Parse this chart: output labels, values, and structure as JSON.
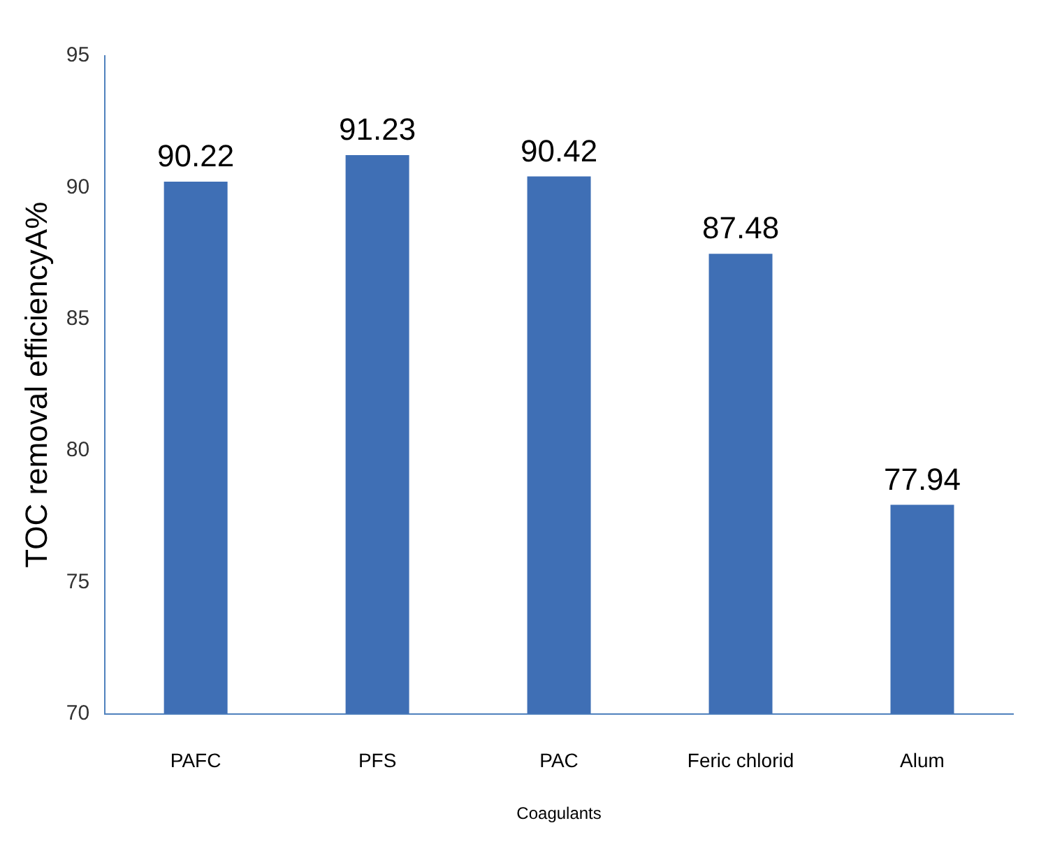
{
  "chart_data": {
    "type": "bar",
    "xlabel": "Coagulants",
    "ylabel": "TOC removal efficiencyA%",
    "categories": [
      "PAFC",
      "PFS",
      "PAC",
      "Feric chlorid",
      "Alum"
    ],
    "values": [
      90.22,
      91.23,
      90.42,
      87.48,
      77.94
    ],
    "color": "#3f6fb5",
    "ylim": [
      70,
      95
    ],
    "yticks": [
      70,
      75,
      80,
      85,
      90,
      95
    ],
    "grid": false,
    "legend": false,
    "data_labels": true
  }
}
